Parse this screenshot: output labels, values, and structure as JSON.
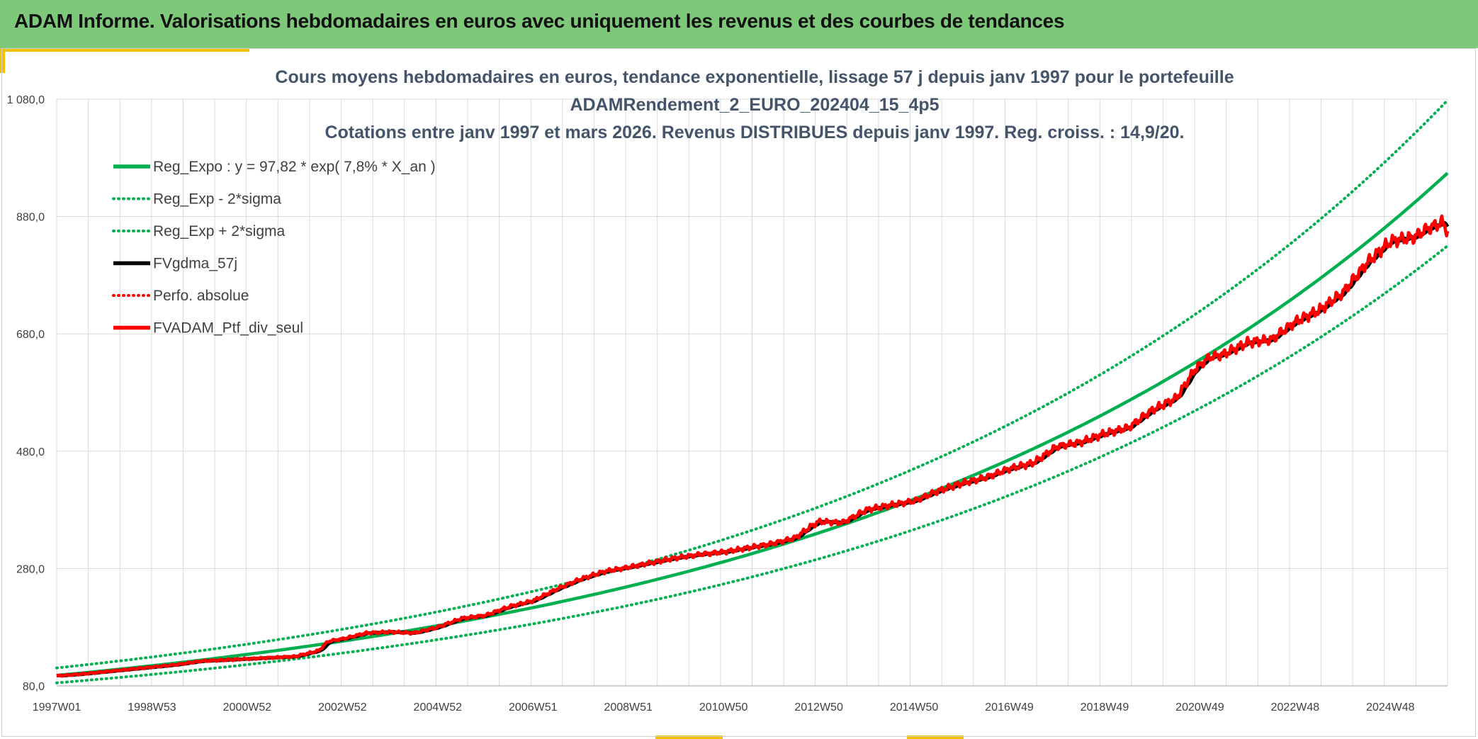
{
  "header": {
    "title": "ADAM Informe. Valorisations hebdomadaires en euros avec uniquement les revenus et des courbes de tendances"
  },
  "colors": {
    "header_bg": "#7ec87a",
    "accent": "#f2c200",
    "trend": "#00b050",
    "average": "#000000",
    "portfolio": "#ff0000",
    "grid": "#d9d9d9",
    "title_text": "#44546a"
  },
  "chart_data": {
    "type": "line",
    "title_lines": [
      "Cours moyens hebdomadaires en euros, tendance exponentielle, lissage 57 j depuis janv 1997 pour le portefeuille",
      "ADAMRendement_2_EURO_202404_15_4p5",
      "Cotations entre janv 1997 et mars 2026. Revenus DISTRIBUES depuis janv 1997. Reg. croiss. : 14,9/20."
    ],
    "xlabel": "",
    "ylabel": "",
    "x_unit": "years since 1997W01",
    "xlim": [
      0,
      29.2
    ],
    "ylim": [
      80,
      1080
    ],
    "y_ticks": [
      {
        "value": 80,
        "label": "80,0"
      },
      {
        "value": 280,
        "label": "280,0"
      },
      {
        "value": 480,
        "label": "480,0"
      },
      {
        "value": 680,
        "label": "680,0"
      },
      {
        "value": 880,
        "label": "880,0"
      },
      {
        "value": 1080,
        "label": "1 080,0"
      }
    ],
    "x_ticks": [
      {
        "t": 0,
        "label": "1997W01"
      },
      {
        "t": 2,
        "label": "1998W53"
      },
      {
        "t": 4,
        "label": "2000W52"
      },
      {
        "t": 6,
        "label": "2002W52"
      },
      {
        "t": 8,
        "label": "2004W52"
      },
      {
        "t": 10,
        "label": "2006W51"
      },
      {
        "t": 12,
        "label": "2008W51"
      },
      {
        "t": 14,
        "label": "2010W50"
      },
      {
        "t": 16,
        "label": "2012W50"
      },
      {
        "t": 18,
        "label": "2014W50"
      },
      {
        "t": 20,
        "label": "2016W49"
      },
      {
        "t": 22,
        "label": "2018W49"
      },
      {
        "t": 24,
        "label": "2020W49"
      },
      {
        "t": 26,
        "label": "2022W48"
      },
      {
        "t": 28,
        "label": "2024W48"
      }
    ],
    "grid": true,
    "legend_position": "top-left",
    "legend": [
      {
        "key": "reg_expo",
        "label": "Reg_Expo : y = 97,82 * exp( 7,8% *  X_an )",
        "style": "solid",
        "color": "#00b050"
      },
      {
        "key": "reg_minus",
        "label": "Reg_Exp - 2*sigma",
        "style": "dotted",
        "color": "#00b050"
      },
      {
        "key": "reg_plus",
        "label": "Reg_Exp + 2*sigma",
        "style": "dotted",
        "color": "#00b050"
      },
      {
        "key": "fvgdma",
        "label": "FVgdma_57j",
        "style": "solid",
        "color": "#000000"
      },
      {
        "key": "perfo",
        "label": "Perfo. absolue",
        "style": "dotted",
        "color": "#ff0000"
      },
      {
        "key": "fvadam",
        "label": "FVADAM_Ptf_div_seul",
        "style": "solid",
        "color": "#ff0000"
      }
    ],
    "regression": {
      "a": 97.82,
      "rate": 0.078,
      "minus_factor": 0.87,
      "plus_factor": 1.13
    },
    "series": [
      {
        "name": "FVADAM_Ptf_div_seul",
        "x": [
          0,
          0.5,
          1,
          1.5,
          2,
          2.5,
          3,
          3.5,
          4,
          4.5,
          5,
          5.5,
          5.7,
          6.0,
          6.5,
          7,
          7.5,
          8,
          8.5,
          9,
          9.5,
          10,
          10.5,
          11,
          11.5,
          12,
          12.5,
          13,
          13.5,
          14,
          14.5,
          15,
          15.5,
          15.8,
          16,
          16.5,
          17,
          17.5,
          18,
          18.5,
          19,
          19.5,
          20,
          20.5,
          21,
          21.5,
          22,
          22.5,
          23,
          23.5,
          23.9,
          24.2,
          24.5,
          25,
          25.5,
          26,
          26.5,
          27,
          27.5,
          28,
          28.5,
          28.8,
          29.1,
          29.2
        ],
        "y": [
          97,
          100,
          104,
          108,
          112,
          116,
          122,
          124,
          126,
          128,
          130,
          140,
          156,
          160,
          170,
          172,
          170,
          180,
          195,
          200,
          215,
          225,
          245,
          262,
          275,
          282,
          290,
          298,
          304,
          308,
          315,
          322,
          332,
          350,
          360,
          358,
          380,
          388,
          395,
          412,
          425,
          435,
          450,
          460,
          488,
          495,
          510,
          520,
          550,
          570,
          620,
          640,
          645,
          665,
          670,
          700,
          720,
          750,
          800,
          838,
          845,
          860,
          870,
          855
        ]
      },
      {
        "name": "FVgdma_57j",
        "note": "57-day moving average; drawn as a smoothed version of FVADAM_Ptf_div_seul",
        "x": [],
        "y": []
      }
    ]
  }
}
